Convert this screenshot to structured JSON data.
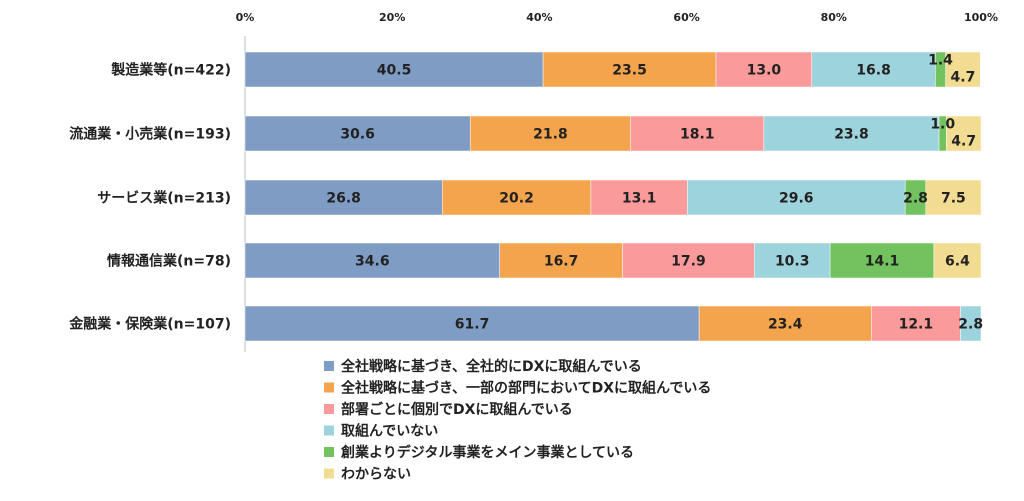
{
  "chart_data": {
    "type": "bar",
    "orientation": "horizontal",
    "stacked": true,
    "x_axis": {
      "min": 0,
      "max": 100,
      "ticks": [
        0,
        20,
        40,
        60,
        80,
        100
      ],
      "tick_labels": [
        "0%",
        "20%",
        "40%",
        "60%",
        "80%",
        "100%"
      ],
      "position": "top",
      "grid": false
    },
    "categories": [
      "製造業等(n=422)",
      "流通業・小売業(n=193)",
      "サービス業(n=213)",
      "情報通信業(n=78)",
      "金融業・保険業(n=107)"
    ],
    "series": [
      {
        "name": "全社戦略に基づき、全社的にDXに取組んでいる",
        "color": "#7f9cc4",
        "values": [
          40.5,
          30.6,
          26.8,
          34.6,
          61.7
        ]
      },
      {
        "name": "全社戦略に基づき、一部の部門においてDXに取組んでいる",
        "color": "#f4a44c",
        "values": [
          23.5,
          21.8,
          20.2,
          16.7,
          23.4
        ]
      },
      {
        "name": "部署ごとに個別でDXに取組んでいる",
        "color": "#fb9a9a",
        "values": [
          13.0,
          18.1,
          13.1,
          17.9,
          12.1
        ]
      },
      {
        "name": "取組んでいない",
        "color": "#9dd3dc",
        "values": [
          16.8,
          23.8,
          29.6,
          10.3,
          2.8
        ]
      },
      {
        "name": "創業よりデジタル事業をメイン事業としている",
        "color": "#72c25f",
        "values": [
          1.4,
          1.0,
          2.8,
          14.1,
          0
        ]
      },
      {
        "name": "わからない",
        "color": "#f2dc91",
        "values": [
          4.7,
          4.7,
          7.5,
          6.4,
          0
        ]
      }
    ],
    "legend_position": "bottom"
  }
}
